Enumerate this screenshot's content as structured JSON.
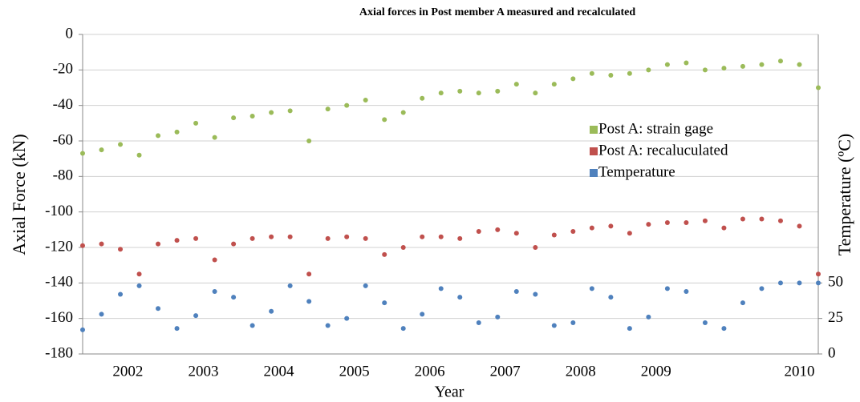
{
  "chart_data": {
    "type": "scatter",
    "title": "Axial forces in Post member A measured and recalculated",
    "x_label": "Year",
    "y_label": "Axial Force (kN)",
    "y2_label": "Temperature (ºC)",
    "xlim": [
      2001.5,
      2011.25
    ],
    "xticks": [
      {
        "value": 2002.1,
        "label": "2002"
      },
      {
        "value": 2003.1,
        "label": "2003"
      },
      {
        "value": 2004.1,
        "label": "2004"
      },
      {
        "value": 2005.1,
        "label": "2005"
      },
      {
        "value": 2006.1,
        "label": "2006"
      },
      {
        "value": 2007.1,
        "label": "2007"
      },
      {
        "value": 2008.1,
        "label": "2008"
      },
      {
        "value": 2009.1,
        "label": "2009"
      },
      {
        "value": 2011.0,
        "label": "2010"
      }
    ],
    "ylim": [
      -180,
      0
    ],
    "yticks": [
      0,
      -20,
      -40,
      -60,
      -80,
      -100,
      -120,
      -140,
      -160,
      -180
    ],
    "y2lim": [
      0,
      225
    ],
    "y2ticks": [
      0,
      25,
      50
    ],
    "grid": true,
    "legend": "right",
    "x": [
      2001.5,
      2001.75,
      2002,
      2002.25,
      2002.5,
      2002.75,
      2003,
      2003.25,
      2003.5,
      2003.75,
      2004,
      2004.25,
      2004.5,
      2004.75,
      2005,
      2005.25,
      2005.5,
      2005.75,
      2006,
      2006.25,
      2006.5,
      2006.75,
      2007,
      2007.25,
      2007.5,
      2007.75,
      2008,
      2008.25,
      2008.5,
      2008.75,
      2009,
      2009.25,
      2009.5,
      2009.75,
      2010,
      2010.25,
      2010.5,
      2010.75,
      2011,
      2011.25
    ],
    "series": [
      {
        "name": "Post A: strain gage",
        "color": "#9bbb59",
        "values": [
          -67,
          -65,
          -62,
          -68,
          -57,
          -55,
          -50,
          -58,
          -47,
          -46,
          -44,
          -43,
          -60,
          -42,
          -40,
          -37,
          -48,
          -44,
          -36,
          -33,
          -32,
          -33,
          -32,
          -28,
          -33,
          -28,
          -25,
          -22,
          -23,
          -22,
          -20,
          -17,
          -16,
          -20,
          -19,
          -18,
          -17,
          -15,
          -17,
          -30
        ]
      },
      {
        "name": "Post A: recaluculated",
        "color": "#c0504d",
        "values": [
          -119,
          -118,
          -121,
          -135,
          -118,
          -116,
          -115,
          -127,
          -118,
          -115,
          -114,
          -114,
          -135,
          -115,
          -114,
          -115,
          -124,
          -120,
          -114,
          -114,
          -115,
          -111,
          -110,
          -112,
          -120,
          -113,
          -111,
          -109,
          -108,
          -112,
          -107,
          -106,
          -106,
          -105,
          -109,
          -104,
          -104,
          -105,
          -108,
          -135
        ]
      },
      {
        "name": "Temperature",
        "color": "#4f81bd",
        "axis": "y2",
        "values": [
          17,
          28,
          42,
          48,
          32,
          18,
          27,
          44,
          40,
          20,
          30,
          48,
          37,
          20,
          25,
          48,
          36,
          18,
          28,
          46,
          40,
          22,
          26,
          44,
          42,
          20,
          22,
          46,
          40,
          18,
          26,
          46,
          44,
          22,
          18,
          36,
          46,
          50,
          50,
          50
        ]
      }
    ]
  }
}
